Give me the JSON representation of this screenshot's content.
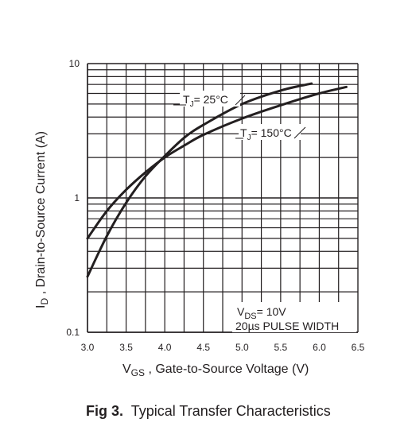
{
  "chart_data": {
    "type": "line",
    "x_scale": "linear",
    "y_scale": "log",
    "xlim": [
      3.0,
      6.5
    ],
    "ylim": [
      0.1,
      10
    ],
    "x_ticks": [
      "3.0",
      "3.5",
      "4.0",
      "4.5",
      "5.0",
      "5.5",
      "6.0",
      "6.5"
    ],
    "y_ticks": [
      "0.1",
      "1",
      "10"
    ],
    "xlabel": {
      "main": "V",
      "sub": "GS",
      "rest": " , Gate-to-Source Voltage (V)"
    },
    "ylabel": {
      "main": "I",
      "sub": "D",
      "rest": " , Drain-to-Source Current (A)"
    },
    "grid": true,
    "series": [
      {
        "name": "TJ = 25°C",
        "label": {
          "main": "T",
          "sub": "J",
          "rest": "= 25°C"
        },
        "x": [
          3.0,
          3.25,
          3.5,
          3.75,
          4.0,
          4.25,
          4.5,
          5.0,
          5.5,
          5.9
        ],
        "y": [
          0.26,
          0.52,
          0.92,
          1.45,
          2.05,
          2.8,
          3.5,
          5.0,
          6.3,
          7.1
        ]
      },
      {
        "name": "TJ = 150°C",
        "label": {
          "main": "T",
          "sub": "J",
          "rest": "= 150°C"
        },
        "x": [
          3.0,
          3.25,
          3.5,
          3.75,
          4.0,
          4.25,
          4.5,
          5.0,
          5.5,
          6.0,
          6.35
        ],
        "y": [
          0.5,
          0.8,
          1.15,
          1.55,
          2.0,
          2.45,
          2.95,
          3.9,
          4.9,
          6.0,
          6.7
        ]
      }
    ],
    "conditions": [
      {
        "main": "V",
        "sub": "DS",
        "rest": "= 10V"
      },
      {
        "text": "20µs PULSE WIDTH"
      }
    ]
  },
  "caption": {
    "fig": "Fig 3.",
    "title": "  Typical Transfer Characteristics"
  }
}
